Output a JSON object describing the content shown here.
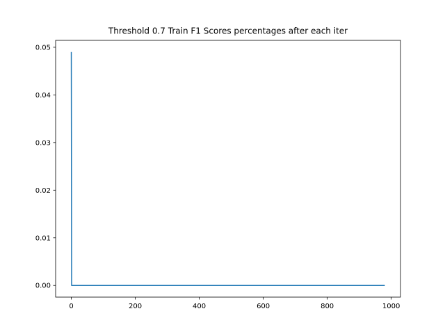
{
  "chart_data": {
    "type": "line",
    "title": "Threshold 0.7 Train F1 Scores percentages after each iter",
    "xlabel": "",
    "ylabel": "",
    "xlim": [
      -49,
      1029
    ],
    "ylim": [
      -0.00245,
      0.05145
    ],
    "xticks": [
      0,
      200,
      400,
      600,
      800,
      1000
    ],
    "xtick_labels": [
      "0",
      "200",
      "400",
      "600",
      "800",
      "1000"
    ],
    "yticks": [
      0.0,
      0.01,
      0.02,
      0.03,
      0.04,
      0.05
    ],
    "ytick_labels": [
      "0.00",
      "0.01",
      "0.02",
      "0.03",
      "0.04",
      "0.05"
    ],
    "grid": false,
    "series": [
      {
        "color": "#1f77b4",
        "x": [
          0,
          1,
          980
        ],
        "y": [
          0.049,
          0.0,
          0.0
        ]
      }
    ]
  }
}
